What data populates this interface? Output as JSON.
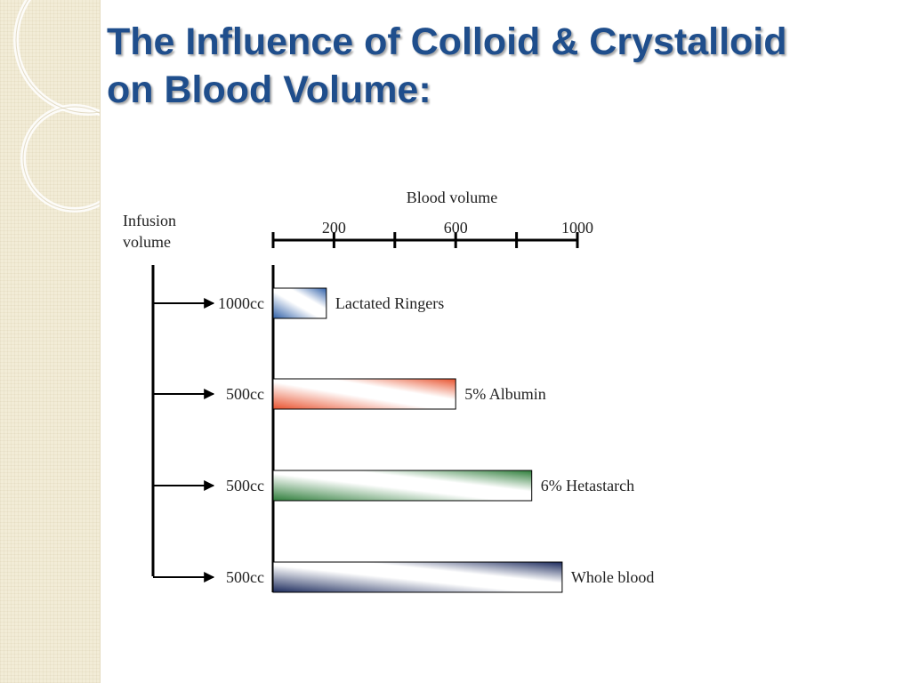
{
  "slide": {
    "title_line1": "The Influence of Colloid & Crystalloid",
    "title_line2": "on Blood Volume:"
  },
  "colors": {
    "title": "#1f4e8c",
    "lactated_ringers": "#2e5fa8",
    "albumin": "#e8532f",
    "hetastarch": "#2e7d3a",
    "whole_blood": "#1b2a5c"
  },
  "chart_data": {
    "type": "bar",
    "orientation": "horizontal",
    "title": "",
    "xlabel": "Blood volume",
    "ylabel": "Infusion volume",
    "ylabel_lines": [
      "Infusion",
      "volume"
    ],
    "xlim": [
      0,
      1000
    ],
    "xticks": [
      0,
      200,
      400,
      600,
      800,
      1000
    ],
    "xtick_labels": [
      {
        "value": 200,
        "label": "200"
      },
      {
        "value": 600,
        "label": "600"
      },
      {
        "value": 1000,
        "label": "1000"
      }
    ],
    "categories": [
      "1000cc",
      "500cc",
      "500cc",
      "500cc"
    ],
    "values": [
      175,
      600,
      850,
      950
    ],
    "bar_labels": [
      "Lactated Ringers",
      "5% Albumin",
      "6% Hetastarch",
      "Whole blood"
    ],
    "bar_colors": [
      "#2e5fa8",
      "#e8532f",
      "#2e7d3a",
      "#1b2a5c"
    ]
  }
}
